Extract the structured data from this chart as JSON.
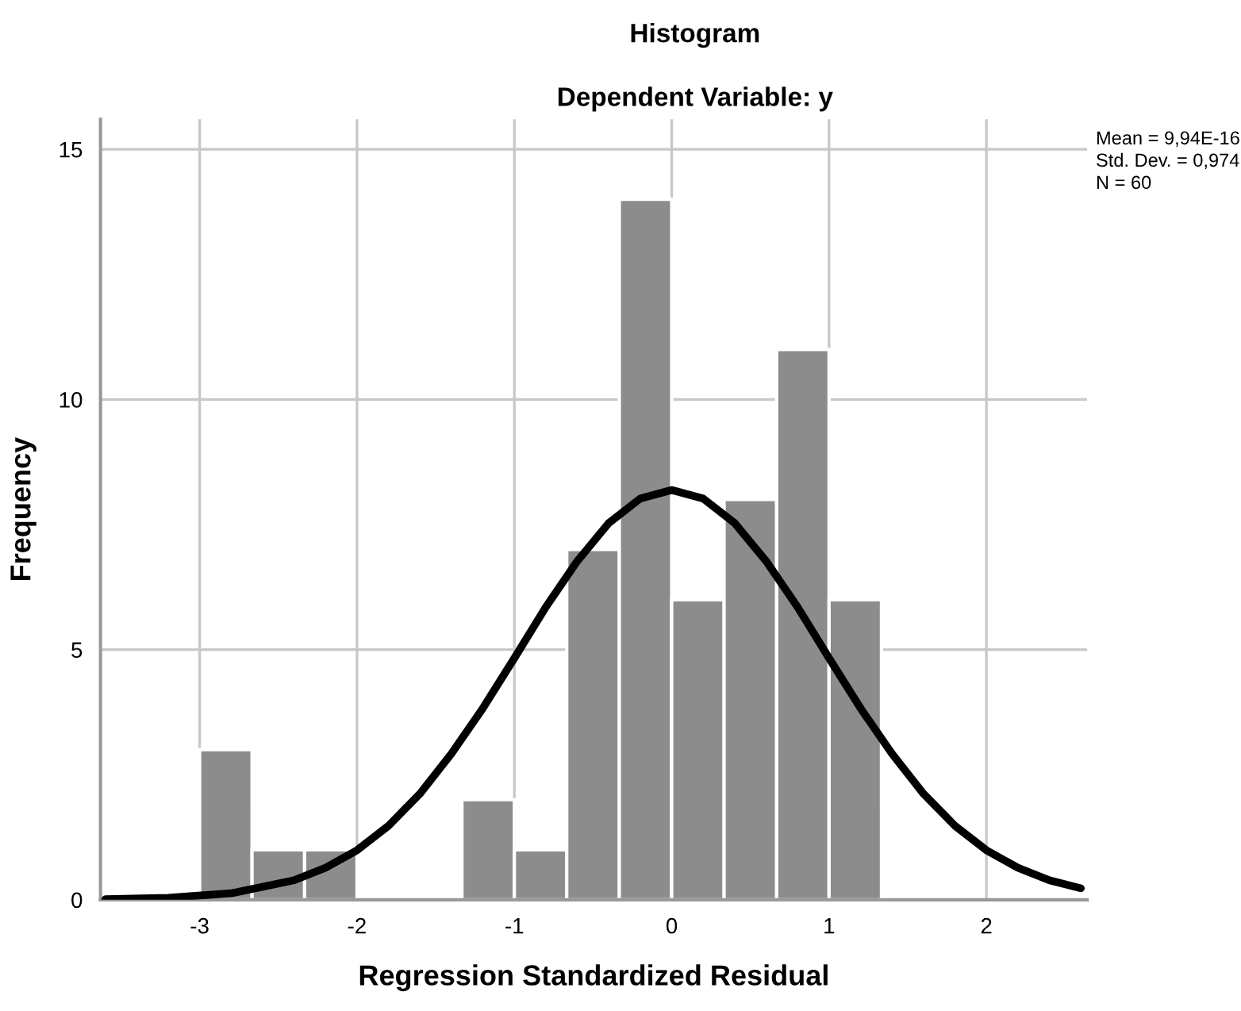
{
  "chart_data": {
    "type": "histogram",
    "title": "Histogram",
    "subtitle": "Dependent Variable: y",
    "xlabel": "Regression Standardized Residual",
    "ylabel": "Frequency",
    "bins": [
      -3,
      -2.667,
      -2.333,
      -2,
      -1.667,
      -1.333,
      -1,
      -0.667,
      -0.333,
      0,
      0.333,
      0.667,
      1,
      1.333
    ],
    "values": [
      3,
      1,
      1,
      0,
      0,
      2,
      1,
      7,
      14,
      6,
      8,
      11,
      6
    ],
    "color": "#8c8c8c",
    "series": [
      {
        "type": "line",
        "color": "#000000",
        "x": [
          -3.6,
          -3.2,
          -2.8,
          -2.4,
          -2.2,
          -2.0,
          -1.8,
          -1.6,
          -1.4,
          -1.2,
          -1.0,
          -0.8,
          -0.6,
          -0.4,
          -0.2,
          0,
          0.2,
          0.4,
          0.6,
          0.8,
          1.0,
          1.2,
          1.4,
          1.6,
          1.8,
          2.0,
          2.2,
          2.4,
          2.6
        ],
        "values": [
          0.01,
          0.04,
          0.13,
          0.39,
          0.64,
          0.99,
          1.48,
          2.12,
          2.92,
          3.83,
          4.83,
          5.85,
          6.77,
          7.53,
          8.02,
          8.19,
          8.02,
          7.53,
          6.77,
          5.85,
          4.83,
          3.83,
          2.92,
          2.12,
          1.48,
          0.99,
          0.64,
          0.39,
          0.23
        ]
      }
    ],
    "annotations": [
      "Mean = 9,94E-16",
      "Std. Dev. = 0,974",
      "N = 60"
    ],
    "xlim": [
      -3.63,
      2.64
    ],
    "ylim": [
      0,
      15.6
    ],
    "xticks": [
      -3,
      -2,
      -1,
      0,
      1,
      2
    ],
    "yticks": [
      0,
      5,
      10,
      15
    ],
    "grid": true
  }
}
